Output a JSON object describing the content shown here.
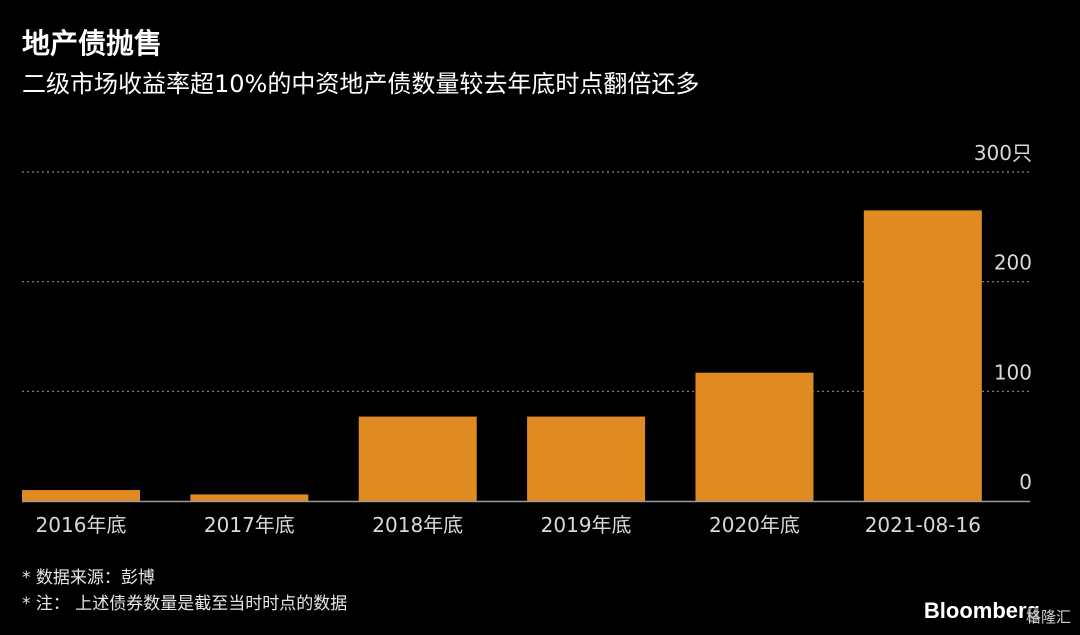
{
  "title": "地产债抛售",
  "subtitle": "二级市场收益率超10%的中资地产债数量较去年底时点翻倍还多",
  "footnotes": {
    "source": "* 数据来源：彭博",
    "note": "* 注： 上述债券数量是截至当时时点的数据"
  },
  "brand": "Bloomberg",
  "watermark": "格隆汇",
  "colors": {
    "background": "#000000",
    "bar": "#E08A22",
    "grid": "#8a8a8a",
    "text": "#ffffff",
    "axis": "#9a9a9a"
  },
  "chart_data": {
    "type": "bar",
    "categories": [
      "2016年底",
      "2017年底",
      "2018年底",
      "2019年底",
      "2020年底",
      "2021-08-16"
    ],
    "values": [
      10,
      6,
      77,
      77,
      117,
      265
    ],
    "ylim": [
      0,
      300
    ],
    "yticks": [
      0,
      100,
      200,
      300
    ],
    "ytick_labels": [
      "0",
      "100",
      "200",
      "300只"
    ],
    "y_axis_position": "right",
    "grid": true,
    "title": "地产债抛售",
    "xlabel": "",
    "ylabel": ""
  }
}
